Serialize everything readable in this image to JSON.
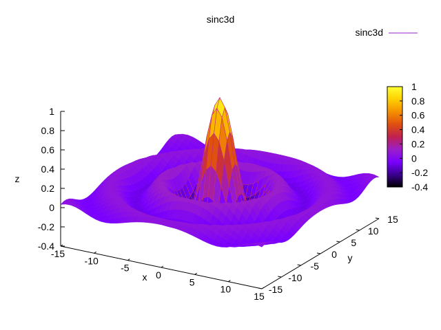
{
  "chart_data": {
    "type": "surface",
    "title": "sinc3d",
    "function": "sin(r)/r, r = sqrt(x^2 + y^2)",
    "legend": {
      "label": "sinc3d",
      "color": "#9b1fc9",
      "placement": "top-right"
    },
    "xlabel": "x",
    "ylabel": "y",
    "zlabel": "z",
    "xlim": [
      -15,
      15
    ],
    "ylim": [
      -15,
      15
    ],
    "zlim": [
      -0.4,
      1
    ],
    "x_ticks": [
      "-15",
      "-10",
      "-5",
      "0",
      "5",
      "10",
      "15"
    ],
    "y_ticks": [
      "-15",
      "-10",
      "-5",
      "0",
      "5",
      "10",
      "15"
    ],
    "z_ticks": [
      "1",
      "0.8",
      "0.6",
      "0.4",
      "0.2",
      "0",
      "-0.2",
      "-0.4"
    ],
    "colorbar": {
      "range": [
        -0.4,
        1
      ],
      "ticks": [
        "1",
        "0.8",
        "0.6",
        "0.4",
        "0.2",
        "0",
        "-0.2",
        "-0.4"
      ],
      "palette": [
        "#000000",
        "#3a0090",
        "#7a00ff",
        "#9b1fc9",
        "#c02050",
        "#e05010",
        "#f59000",
        "#ffd000",
        "#ffff30"
      ]
    },
    "grid": false
  }
}
